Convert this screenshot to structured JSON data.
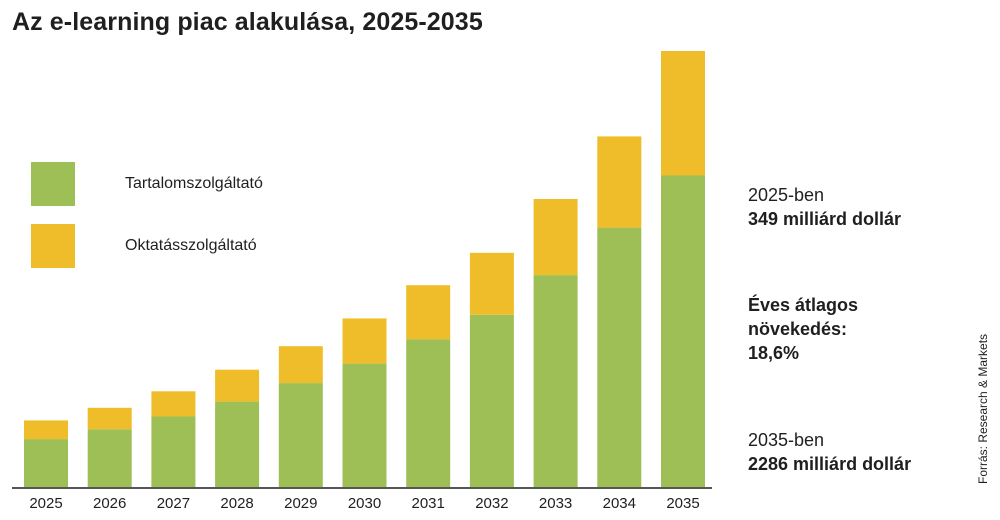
{
  "title": "Az e-learning piac alakulása, 2025-2035",
  "legend": [
    {
      "label": "Tartalomszolgáltató",
      "color": "#9dbf55"
    },
    {
      "label": "Oktatásszolgáltató",
      "color": "#f0bd2a"
    }
  ],
  "notes": {
    "start_year": "2025-ben",
    "start_value": "349 milliárd dollár",
    "growth_line1": "Éves átlagos",
    "growth_line2": "növekedés:",
    "growth_value": "18,6%",
    "end_year": "2035-ben",
    "end_value": "2286 milliárd dollár"
  },
  "source": "Forrás: Research & Markets",
  "chart_data": {
    "type": "bar",
    "stacked": true,
    "categories": [
      "2025",
      "2026",
      "2027",
      "2028",
      "2029",
      "2030",
      "2031",
      "2032",
      "2033",
      "2034",
      "2035"
    ],
    "series": [
      {
        "name": "Tartalomszolgáltató",
        "color": "#9dbf55",
        "values": [
          251,
          303,
          370,
          448,
          545,
          647,
          775,
          903,
          1111,
          1360,
          1633
        ]
      },
      {
        "name": "Oktatásszolgáltató",
        "color": "#f0bd2a",
        "values": [
          98,
          112,
          132,
          167,
          193,
          237,
          283,
          325,
          399,
          478,
          653
        ]
      }
    ],
    "ylim": [
      0,
      2286
    ],
    "grid": false,
    "legend_position": "left"
  }
}
